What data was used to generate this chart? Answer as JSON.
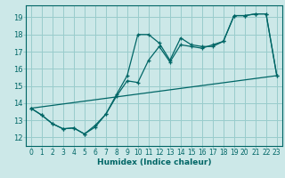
{
  "xlabel": "Humidex (Indice chaleur)",
  "bg_color": "#cce8e8",
  "grid_color": "#99cccc",
  "line_color": "#006666",
  "xlim": [
    -0.5,
    23.5
  ],
  "ylim": [
    11.5,
    19.7
  ],
  "xticks": [
    0,
    1,
    2,
    3,
    4,
    5,
    6,
    7,
    8,
    9,
    10,
    11,
    12,
    13,
    14,
    15,
    16,
    17,
    18,
    19,
    20,
    21,
    22,
    23
  ],
  "yticks": [
    12,
    13,
    14,
    15,
    16,
    17,
    18,
    19
  ],
  "line1_x": [
    0,
    1,
    2,
    3,
    4,
    5,
    6,
    7,
    8,
    9,
    10,
    11,
    12,
    13,
    14,
    15,
    16,
    17,
    18,
    19,
    20,
    21,
    22,
    23
  ],
  "line1_y": [
    13.7,
    13.3,
    12.8,
    12.5,
    12.55,
    12.2,
    12.6,
    13.35,
    14.4,
    15.3,
    15.2,
    16.5,
    17.3,
    16.4,
    17.4,
    17.3,
    17.2,
    17.4,
    17.6,
    19.1,
    19.1,
    19.2,
    19.2,
    15.6
  ],
  "line2_x": [
    0,
    1,
    2,
    3,
    4,
    5,
    6,
    7,
    8,
    9,
    10,
    11,
    12,
    13,
    14,
    15,
    16,
    17,
    18,
    19,
    20,
    21,
    22,
    23
  ],
  "line2_y": [
    13.7,
    13.3,
    12.8,
    12.5,
    12.55,
    12.2,
    12.7,
    13.35,
    14.5,
    15.6,
    18.0,
    18.0,
    17.5,
    16.5,
    17.8,
    17.4,
    17.3,
    17.3,
    17.6,
    19.1,
    19.1,
    19.2,
    19.2,
    15.6
  ],
  "line3_x": [
    0,
    23
  ],
  "line3_y": [
    13.7,
    15.6
  ],
  "xlabel_fontsize": 6.5,
  "tick_fontsize": 5.5,
  "ytick_fontsize": 6.0
}
